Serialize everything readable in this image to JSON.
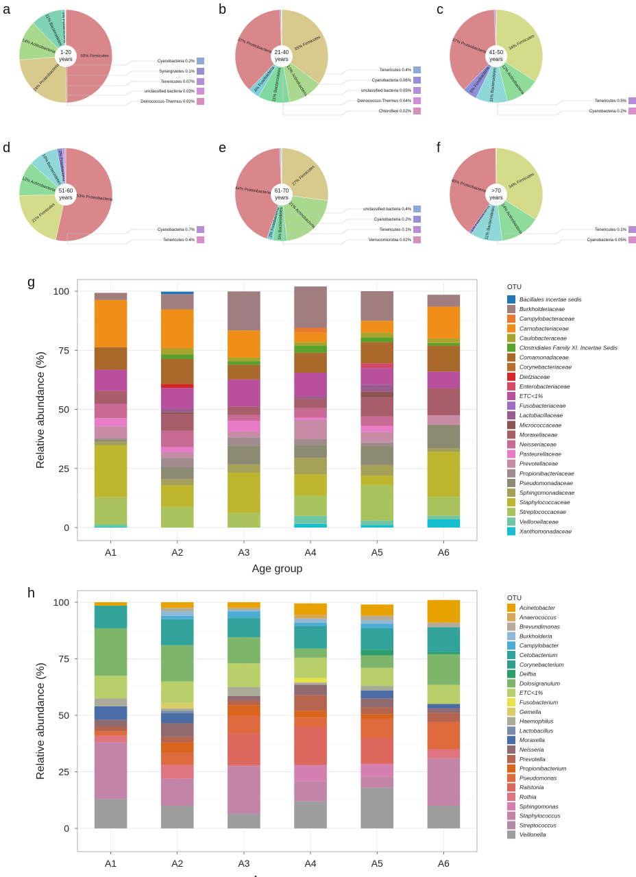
{
  "chart_data": [
    {
      "type": "pie",
      "panel": "a",
      "center_label": [
        "1-20",
        "years"
      ],
      "slices": [
        {
          "label": "Firmicutes",
          "value": 50,
          "pct_text": "50%",
          "color": "#d9878a"
        },
        {
          "label": "Proteobacteria",
          "value": 24,
          "pct_text": "24%",
          "color": "#d8c98c"
        },
        {
          "label": "Actinobacteria",
          "value": 14,
          "pct_text": "14%",
          "color": "#a9d98c"
        },
        {
          "label": "Bacteroidetes",
          "value": 11,
          "pct_text": "11%",
          "color": "#7fd2b4"
        },
        {
          "label": "Fusobacteria",
          "value": 1,
          "pct_text": "1%",
          "color": "#6fd0c8"
        },
        {
          "label": "Cyanobacteria",
          "value": 0.2,
          "pct_text": "0.2%",
          "color": "#8da9d8"
        },
        {
          "label": "Synergistetes",
          "value": 0.1,
          "pct_text": "0.1%",
          "color": "#9b8ed8"
        },
        {
          "label": "Tenericutes",
          "value": 0.07,
          "pct_text": "0.07%",
          "color": "#b48ed8"
        },
        {
          "label": "unclassified bacteria",
          "value": 0.03,
          "pct_text": "0.03%",
          "color": "#cf8ed8"
        },
        {
          "label": "Deinococcus-Thermus",
          "value": 0.02,
          "pct_text": "0.02%",
          "color": "#d88eb8"
        }
      ]
    },
    {
      "type": "pie",
      "panel": "b",
      "center_label": [
        "21-40",
        "years"
      ],
      "slices": [
        {
          "label": "Firmicutes",
          "value": 35,
          "pct_text": "35%",
          "color": "#d8c98c"
        },
        {
          "label": "Actinobacteria",
          "value": 12,
          "pct_text": "12%",
          "color": "#a9d98c"
        },
        {
          "label": "Bacteroidetes",
          "value": 11,
          "pct_text": "11%",
          "color": "#7fd9a0"
        },
        {
          "label": "Fusobacteria",
          "value": 4,
          "pct_text": "4%",
          "color": "#7fd0d8"
        },
        {
          "label": "Proteobacteria",
          "value": 37,
          "pct_text": "37%",
          "color": "#d9878a"
        },
        {
          "label": "Tenericutes",
          "value": 0.4,
          "pct_text": "0.4%",
          "color": "#8da9d8"
        },
        {
          "label": "Cyanobacteria",
          "value": 0.06,
          "pct_text": "0.06%",
          "color": "#9b8ed8"
        },
        {
          "label": "unclassified bacteria",
          "value": 0.05,
          "pct_text": "0.05%",
          "color": "#b48ed8"
        },
        {
          "label": "Deinococcus-Thermus",
          "value": 0.04,
          "pct_text": "0.04%",
          "color": "#cf8ed8"
        },
        {
          "label": "Chloroflexi",
          "value": 0.02,
          "pct_text": "0.02%",
          "color": "#d88eb8"
        }
      ]
    },
    {
      "type": "pie",
      "panel": "c",
      "center_label": [
        "41-50",
        "years"
      ],
      "slices": [
        {
          "label": "Firmicutes",
          "value": 34,
          "pct_text": "34%",
          "color": "#d4dc8c"
        },
        {
          "label": "Actinobacteria",
          "value": 12,
          "pct_text": "12%",
          "color": "#8fdc9a"
        },
        {
          "label": "Bacteroidetes",
          "value": 11,
          "pct_text": "11%",
          "color": "#8fd8d8"
        },
        {
          "label": "Fusobacteria",
          "value": 5,
          "pct_text": "5%",
          "color": "#8d8fd8"
        },
        {
          "label": "Proteobacteria",
          "value": 37,
          "pct_text": "37%",
          "color": "#d9878a"
        },
        {
          "label": "Tenericutes",
          "value": 0.5,
          "pct_text": "0.5%",
          "color": "#b58ed8"
        },
        {
          "label": "Cyanobacteria",
          "value": 0.2,
          "pct_text": "0.2%",
          "color": "#d88ec8"
        }
      ]
    },
    {
      "type": "pie",
      "panel": "d",
      "center_label": [
        "51-60",
        "years"
      ],
      "slices": [
        {
          "label": "Proteobacteria",
          "value": 53,
          "pct_text": "53%",
          "color": "#d9878a"
        },
        {
          "label": "Firmicutes",
          "value": 21,
          "pct_text": "21%",
          "color": "#d4dc8c"
        },
        {
          "label": "Actinobacteria",
          "value": 12,
          "pct_text": "12%",
          "color": "#8fdc9a"
        },
        {
          "label": "Bacteroidetes",
          "value": 10,
          "pct_text": "10%",
          "color": "#8fd8d8"
        },
        {
          "label": "Fusobacteria",
          "value": 2,
          "pct_text": "2%",
          "color": "#8d8fd8"
        },
        {
          "label": "Cyanobacteria",
          "value": 0.7,
          "pct_text": "0.7%",
          "color": "#b58ed8"
        },
        {
          "label": "Tenericutes",
          "value": 0.4,
          "pct_text": "0.4%",
          "color": "#d88ec8"
        }
      ]
    },
    {
      "type": "pie",
      "panel": "e",
      "center_label": [
        "61-70",
        "years"
      ],
      "slices": [
        {
          "label": "Firmicutes",
          "value": 27,
          "pct_text": "27%",
          "color": "#d8c98c"
        },
        {
          "label": "Actinobacteria",
          "value": 21,
          "pct_text": "21%",
          "color": "#a9d98c"
        },
        {
          "label": "Bacteroidetes",
          "value": 5,
          "pct_text": "5%",
          "color": "#7fd9a0"
        },
        {
          "label": "Fusobacteria",
          "value": 2,
          "pct_text": "2%",
          "color": "#7fd0d8"
        },
        {
          "label": "Proteobacteria",
          "value": 44,
          "pct_text": "44%",
          "color": "#d9878a"
        },
        {
          "label": "unclassified bacteria",
          "value": 0.4,
          "pct_text": "0.4%",
          "color": "#8da9d8"
        },
        {
          "label": "Cyanobacteria",
          "value": 0.2,
          "pct_text": "0.2%",
          "color": "#9b8ed8"
        },
        {
          "label": "Tenericutes",
          "value": 0.1,
          "pct_text": "0.1%",
          "color": "#b48ed8"
        },
        {
          "label": "Verrucomicrobia",
          "value": 0.02,
          "pct_text": "0.02%",
          "color": "#d88eb8"
        }
      ]
    },
    {
      "type": "pie",
      "panel": "f",
      "center_label": [
        ">70",
        "years"
      ],
      "slices": [
        {
          "label": "Firmicutes",
          "value": 34,
          "pct_text": "34%",
          "color": "#d4dc8c"
        },
        {
          "label": "Actinobacteria",
          "value": 14,
          "pct_text": "14%",
          "color": "#8fdc9a"
        },
        {
          "label": "Bacteroidetes",
          "value": 11,
          "pct_text": "11%",
          "color": "#8fd8d8"
        },
        {
          "label": "Fusobacteria",
          "value": 1,
          "pct_text": "1%",
          "color": "#8d8fd8"
        },
        {
          "label": "Proteobacteria",
          "value": 40,
          "pct_text": "40%",
          "color": "#d9878a"
        },
        {
          "label": "Tenericutes",
          "value": 0.1,
          "pct_text": "0.1%",
          "color": "#b58ed8"
        },
        {
          "label": "Cyanobacteria",
          "value": 0.05,
          "pct_text": "0.05%",
          "color": "#d88ec8"
        }
      ]
    },
    {
      "type": "bar",
      "stacked": true,
      "panel": "g",
      "xlabel": "Age group",
      "ylabel": "Relative abundance (%)",
      "ylim": [
        0,
        100
      ],
      "yticks": [
        0,
        25,
        50,
        75,
        100
      ],
      "grid": true,
      "legend_position": "right",
      "legend_title": "OTU",
      "categories": [
        "A1",
        "A2",
        "A3",
        "A4",
        "A5",
        "A6"
      ],
      "series": [
        {
          "name": "Xanthomonadaceae",
          "color": "#17becf",
          "values": [
            0.3,
            0,
            0,
            1.5,
            1,
            3.5
          ]
        },
        {
          "name": "Veillonellaceae",
          "color": "#6fc6a4",
          "values": [
            1,
            0,
            0,
            3.5,
            2,
            1.5
          ]
        },
        {
          "name": "Streptococcaceae",
          "color": "#a9c45c",
          "values": [
            11.5,
            8.8,
            6.2,
            8.5,
            15,
            8
          ]
        },
        {
          "name": "Staphylococcaceae",
          "color": "#bdb62e",
          "values": [
            22,
            9,
            17,
            9,
            4,
            19
          ]
        },
        {
          "name": "Sphingomonadaceae",
          "color": "#a6a158",
          "values": [
            1.5,
            2.7,
            3.5,
            7,
            4.5,
            1.5
          ]
        },
        {
          "name": "Pseudomonadaceae",
          "color": "#8c8a72",
          "values": [
            1,
            5,
            8,
            5.5,
            8,
            10
          ]
        },
        {
          "name": "Propionibacteriaceae",
          "color": "#9f8a8d",
          "values": [
            0.5,
            4,
            3.5,
            2.5,
            1.5,
            0
          ]
        },
        {
          "name": "Prevotellaceae",
          "color": "#c88ba6",
          "values": [
            5,
            2.5,
            2.5,
            8,
            4.5,
            4
          ]
        },
        {
          "name": "Pasteurellaceae",
          "color": "#e77bc8",
          "values": [
            3.5,
            2,
            4.5,
            1,
            2.5,
            0
          ]
        },
        {
          "name": "Neisseriaceae",
          "color": "#c96a95",
          "values": [
            6,
            7,
            2.5,
            4,
            4,
            0
          ]
        },
        {
          "name": "Moraxellaceae",
          "color": "#a85d6b",
          "values": [
            5.5,
            7,
            3.5,
            4,
            8,
            11.5
          ]
        },
        {
          "name": "Micrococcaceae",
          "color": "#8e5454",
          "values": [
            0,
            0.8,
            0,
            0,
            2.5,
            0
          ]
        },
        {
          "name": "Lactobacillaceae",
          "color": "#985d8e",
          "values": [
            0,
            1.5,
            0,
            1,
            3,
            0
          ]
        },
        {
          "name": "Fusobacteriaceae",
          "color": "#9e6fc6",
          "values": [
            0,
            0,
            0,
            0,
            0,
            0
          ]
        },
        {
          "name": "ETC<1%",
          "color": "#b9509e",
          "values": [
            9,
            8.8,
            11.5,
            10,
            7,
            7
          ]
        },
        {
          "name": "Enterobacteriaceae",
          "color": "#d44a66",
          "values": [
            0,
            0,
            0,
            0,
            2,
            0
          ]
        },
        {
          "name": "Dietziaceae",
          "color": "#d62728",
          "values": [
            0,
            1.7,
            0,
            0,
            0,
            0
          ]
        },
        {
          "name": "Corynebacteriaceae",
          "color": "#b5702c",
          "values": [
            0,
            0,
            0,
            0,
            0,
            0
          ]
        },
        {
          "name": "Comamonadaceae",
          "color": "#a8692a",
          "values": [
            9.5,
            10.5,
            6.2,
            8.5,
            9,
            11
          ]
        },
        {
          "name": "Clostridiales Family XI. Incertae Sedis",
          "color": "#5aa02c",
          "values": [
            0,
            2,
            1.5,
            3,
            2,
            1
          ]
        },
        {
          "name": "Caulobacteraceae",
          "color": "#a7a52e",
          "values": [
            0,
            2.5,
            1.5,
            1.5,
            2,
            2
          ]
        },
        {
          "name": "Carnobacteriaceae",
          "color": "#ef8f1a",
          "values": [
            20,
            16.5,
            11.5,
            4,
            5,
            13.5
          ]
        },
        {
          "name": "Campylobacteraceae",
          "color": "#ea7a2e",
          "values": [
            0,
            0,
            0,
            2,
            0,
            0
          ]
        },
        {
          "name": "Burkholderiaceae",
          "color": "#a07e7f",
          "values": [
            3,
            6.5,
            16.5,
            17.5,
            12.5,
            5
          ]
        },
        {
          "name": "Bacillales incertae sedis",
          "color": "#1f77b4",
          "values": [
            0,
            1,
            0,
            0,
            0,
            0
          ]
        }
      ]
    },
    {
      "type": "bar",
      "stacked": true,
      "panel": "h",
      "xlabel": "Age group",
      "ylabel": "Relative abundance (%)",
      "ylim": [
        0,
        100
      ],
      "yticks": [
        0,
        25,
        50,
        75,
        100
      ],
      "grid": true,
      "legend_position": "right",
      "legend_title": "OTU",
      "categories": [
        "A1",
        "A2",
        "A3",
        "A4",
        "A5",
        "A6"
      ],
      "series": [
        {
          "name": "Veillonella",
          "color": "#9d9d9d",
          "values": [
            13,
            10,
            6.5,
            12,
            18,
            10
          ]
        },
        {
          "name": "Streptococcus",
          "color": "#b38aa6",
          "values": [
            0,
            0,
            0,
            0,
            0,
            0
          ]
        },
        {
          "name": "Staphylococcus",
          "color": "#c285a8",
          "values": [
            25,
            12,
            21,
            9,
            5,
            21
          ]
        },
        {
          "name": "Sphingomonas",
          "color": "#d47fb0",
          "values": [
            0,
            0,
            0,
            7,
            5.5,
            0
          ]
        },
        {
          "name": "Rothia",
          "color": "#e07581",
          "values": [
            3,
            6,
            0.5,
            0,
            0,
            4
          ]
        },
        {
          "name": "Ralstonia",
          "color": "#dc675d",
          "values": [
            0,
            0,
            14,
            17,
            11.5,
            0
          ]
        },
        {
          "name": "Pseudomonas",
          "color": "#dd6b3e",
          "values": [
            2,
            5.5,
            8,
            4,
            8.5,
            12
          ]
        },
        {
          "name": "Propionibacterium",
          "color": "#d9641b",
          "values": [
            0,
            4.5,
            4.5,
            3,
            2,
            0
          ]
        },
        {
          "name": "Prevotella",
          "color": "#b5644d",
          "values": [
            2,
            2.5,
            2,
            7,
            3,
            4
          ]
        },
        {
          "name": "Neisseria",
          "color": "#8f6a6e",
          "values": [
            3,
            6,
            2,
            4.5,
            4,
            2
          ]
        },
        {
          "name": "Moraxella",
          "color": "#4a6da5",
          "values": [
            6,
            4.5,
            0,
            0,
            3.5,
            2
          ]
        },
        {
          "name": "Lactobacillus",
          "color": "#7a8bab",
          "values": [
            0,
            1,
            0,
            0,
            0,
            0
          ]
        },
        {
          "name": "Haemophilus",
          "color": "#a9aa98",
          "values": [
            3.5,
            1,
            4,
            1,
            2,
            0
          ]
        },
        {
          "name": "Gemella",
          "color": "#d7cf66",
          "values": [
            0,
            2.5,
            0,
            0,
            0,
            0
          ]
        },
        {
          "name": "Fusobacterium",
          "color": "#e8e24a",
          "values": [
            0,
            0,
            0,
            2,
            0,
            0
          ]
        },
        {
          "name": "ETC<1%",
          "color": "#b9d06a",
          "values": [
            10,
            9.5,
            10.5,
            9,
            8,
            8.5
          ]
        },
        {
          "name": "Dolosigranulum",
          "color": "#7db66b",
          "values": [
            21,
            16,
            11.5,
            4,
            5.5,
            13.5
          ]
        },
        {
          "name": "Delftia",
          "color": "#2a9d6b",
          "values": [
            0,
            0,
            0,
            0,
            2.5,
            1
          ]
        },
        {
          "name": "Corynebacterium",
          "color": "#2e9e8a",
          "values": [
            0,
            0,
            0,
            0,
            0,
            0
          ]
        },
        {
          "name": "Cetobacterium",
          "color": "#32a39a",
          "values": [
            10,
            11.5,
            8.5,
            10,
            9.5,
            11
          ]
        },
        {
          "name": "Campylobacter",
          "color": "#4dacd6",
          "values": [
            0,
            1.5,
            3,
            1.5,
            2,
            0
          ]
        },
        {
          "name": "Burkholderia",
          "color": "#8fb8d6",
          "values": [
            0,
            2,
            0.5,
            1.5,
            1.5,
            0
          ]
        },
        {
          "name": "Brevundimonas",
          "color": "#b6aa98",
          "values": [
            0,
            1.5,
            1,
            0.5,
            2,
            2
          ]
        },
        {
          "name": "Anaerococcus",
          "color": "#d8a657",
          "values": [
            0,
            0,
            0,
            1.5,
            0,
            0
          ]
        },
        {
          "name": "Acinetobacter",
          "color": "#e8a200",
          "values": [
            1.5,
            2.5,
            2.5,
            5,
            5,
            10
          ]
        }
      ]
    }
  ],
  "panels": {
    "a": "a",
    "b": "b",
    "c": "c",
    "d": "d",
    "e": "e",
    "f": "f",
    "g": "g",
    "h": "h"
  }
}
